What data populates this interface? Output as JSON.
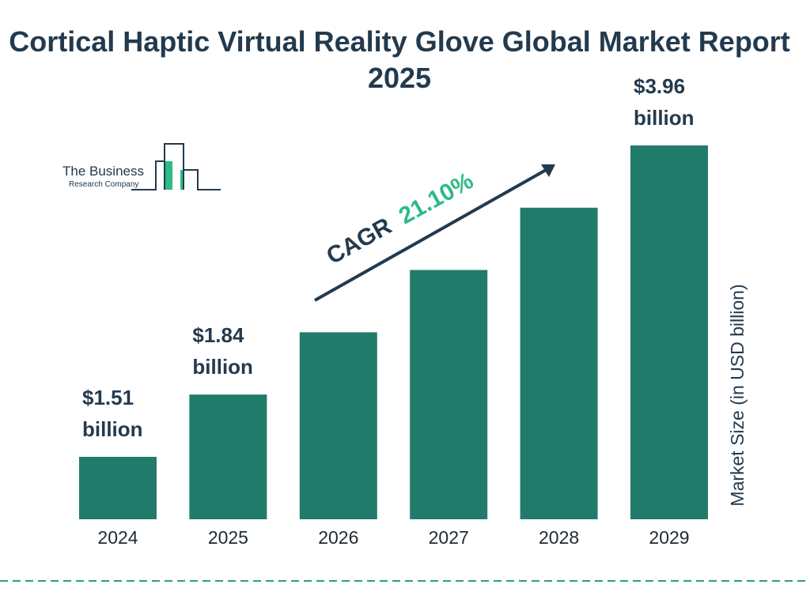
{
  "title": "Cortical Haptic Virtual Reality Glove Global Market Report 2025",
  "logo": {
    "line1": "The Business",
    "line2": "Research Company"
  },
  "colors": {
    "bar": "#217b6b",
    "text": "#233a4e",
    "accent": "#2dbb86",
    "divider": "#2a9d8f"
  },
  "cagr": {
    "label": "CAGR",
    "value": "21.10%"
  },
  "chart_data": {
    "type": "bar",
    "categories": [
      "2024",
      "2025",
      "2026",
      "2027",
      "2028",
      "2029"
    ],
    "values": [
      1.51,
      1.84,
      2.23,
      2.7,
      3.27,
      3.96
    ],
    "data_labels": [
      {
        "amount": "$1.51",
        "unit": "billion"
      },
      {
        "amount": "$1.84",
        "unit": "billion"
      },
      null,
      null,
      null,
      {
        "amount": "$3.96",
        "unit": "billion"
      }
    ],
    "ylabel": "Market Size (in USD billion)",
    "xlabel": "",
    "grid": false
  }
}
